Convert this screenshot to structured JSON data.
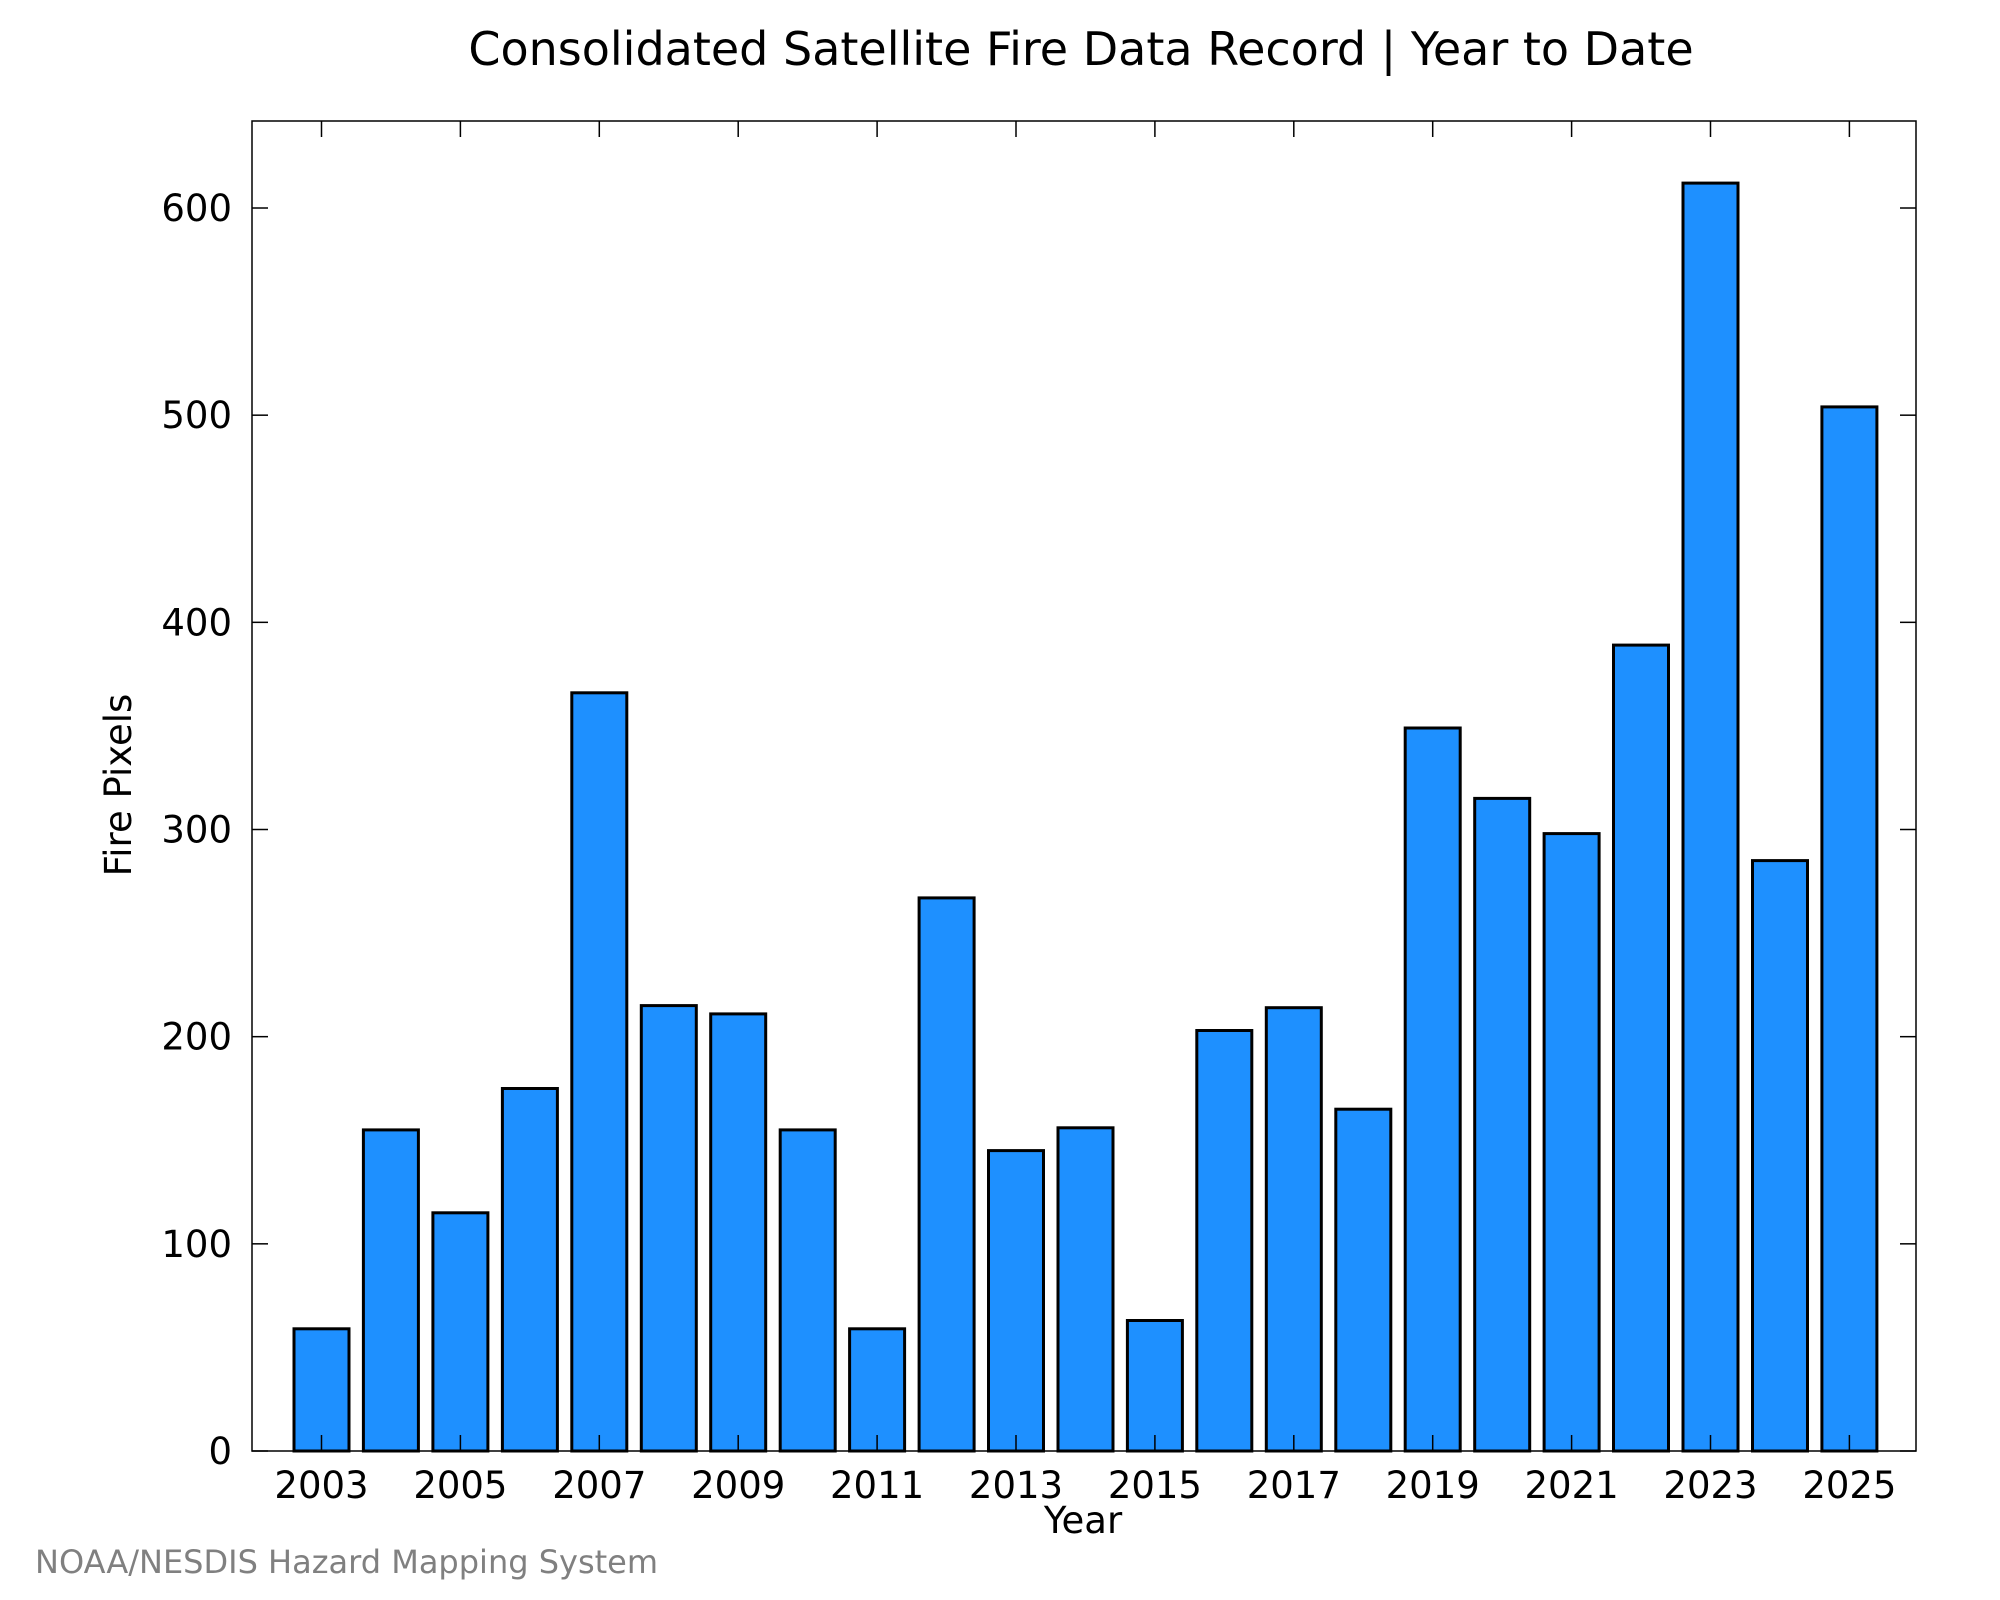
{
  "chart_data": {
    "type": "bar",
    "title": "Consolidated Satellite Fire Data Record | Year to Date",
    "xlabel": "Year",
    "ylabel": "Fire Pixels",
    "categories": [
      "2003",
      "2004",
      "2005",
      "2006",
      "2007",
      "2008",
      "2009",
      "2010",
      "2011",
      "2012",
      "2013",
      "2014",
      "2015",
      "2016",
      "2017",
      "2018",
      "2019",
      "2020",
      "2021",
      "2022",
      "2023",
      "2024",
      "2025"
    ],
    "values": [
      59,
      155,
      115,
      175,
      366,
      215,
      211,
      155,
      59,
      267,
      145,
      156,
      63,
      203,
      214,
      165,
      349,
      315,
      298,
      389,
      612,
      285,
      504
    ],
    "ylim": [
      0,
      642
    ],
    "yticks": [
      0,
      100,
      200,
      300,
      400,
      500,
      600
    ],
    "xtick_labels": [
      "2003",
      "2005",
      "2007",
      "2009",
      "2011",
      "2013",
      "2015",
      "2017",
      "2019",
      "2021",
      "2023",
      "2025"
    ],
    "bar_color": "#1e90ff",
    "bar_edge_color": "#000000",
    "grid": false,
    "legend": null
  },
  "credit": "NOAA/NESDIS Hazard Mapping System"
}
